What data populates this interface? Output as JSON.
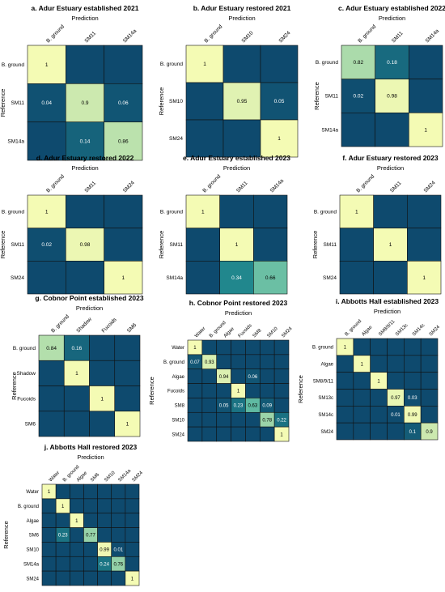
{
  "colors": {
    "low": "#0e4a6e",
    "mid": "#2aa39c",
    "high": "#f4fbb4",
    "grid": "#111111"
  },
  "chart_data": [
    {
      "type": "heatmap",
      "title": "a. Adur Estuary established 2021",
      "xlabel": "Prediction",
      "ylabel": "Reference",
      "x_categories": [
        "B. ground",
        "SM11",
        "SM14a"
      ],
      "y_categories": [
        "B. ground",
        "SM11",
        "SM14a"
      ],
      "values": [
        [
          1,
          0,
          0
        ],
        [
          0.04,
          0.9,
          0.06
        ],
        [
          0,
          0.14,
          0.86
        ]
      ]
    },
    {
      "type": "heatmap",
      "title": "b. Adur Estuary restored 2021",
      "xlabel": "Prediction",
      "ylabel": "Reference",
      "x_categories": [
        "B. ground",
        "SM10",
        "SM24"
      ],
      "y_categories": [
        "B. ground",
        "SM10",
        "SM24"
      ],
      "values": [
        [
          1,
          0,
          0
        ],
        [
          0,
          0.95,
          0.05
        ],
        [
          0,
          0,
          1
        ]
      ]
    },
    {
      "type": "heatmap",
      "title": "c. Adur Estuary established 2022",
      "xlabel": "Prediction",
      "ylabel": "Reference",
      "x_categories": [
        "B. ground",
        "SM11",
        "SM14a"
      ],
      "y_categories": [
        "B. ground",
        "SM11",
        "SM14a"
      ],
      "values": [
        [
          0.82,
          0.18,
          0
        ],
        [
          0.02,
          0.98,
          0
        ],
        [
          0,
          0,
          1
        ]
      ]
    },
    {
      "type": "heatmap",
      "title": "d. Adur Estuary restored 2022",
      "xlabel": "Prediction",
      "ylabel": "Reference",
      "x_categories": [
        "B. ground",
        "SM11",
        "SM24"
      ],
      "y_categories": [
        "B. ground",
        "SM11",
        "SM24"
      ],
      "values": [
        [
          1,
          0,
          0
        ],
        [
          0.02,
          0.98,
          0
        ],
        [
          0,
          0,
          1
        ]
      ]
    },
    {
      "type": "heatmap",
      "title": "e. Adur Estuary established 2023",
      "xlabel": "Prediction",
      "ylabel": "Reference",
      "x_categories": [
        "B. ground",
        "SM11",
        "SM14a"
      ],
      "y_categories": [
        "B. ground",
        "SM11",
        "SM14a"
      ],
      "values": [
        [
          1,
          0,
          0
        ],
        [
          0,
          1,
          0
        ],
        [
          0,
          0.34,
          0.66
        ]
      ]
    },
    {
      "type": "heatmap",
      "title": "f. Adur Estuary restored 2023",
      "xlabel": "Prediction",
      "ylabel": "Reference",
      "x_categories": [
        "B. ground",
        "SM11",
        "SM24"
      ],
      "y_categories": [
        "B. ground",
        "SM11",
        "SM24"
      ],
      "values": [
        [
          1,
          0,
          0
        ],
        [
          0,
          1,
          0
        ],
        [
          0,
          0,
          1
        ]
      ]
    },
    {
      "type": "heatmap",
      "title": "g. Cobnor Point established 2023",
      "xlabel": "Prediction",
      "ylabel": "Reference",
      "x_categories": [
        "B. ground",
        "Shadow",
        "Fucoids",
        "SM6"
      ],
      "y_categories": [
        "B. ground",
        "Shadow",
        "Fucoids",
        "SM6"
      ],
      "values": [
        [
          0.84,
          0.16,
          0,
          0
        ],
        [
          0,
          1,
          0,
          0
        ],
        [
          0,
          0,
          1,
          0
        ],
        [
          0,
          0,
          0,
          1
        ]
      ]
    },
    {
      "type": "heatmap",
      "title": "h. Cobnor Point restored 2023",
      "xlabel": "Prediction",
      "ylabel": "Reference",
      "x_categories": [
        "Water",
        "B. ground",
        "Algae",
        "Fucoids",
        "SM8",
        "SM10",
        "SM24"
      ],
      "y_categories": [
        "Water",
        "B. ground",
        "Algae",
        "Fucoids",
        "SM8",
        "SM10",
        "SM24"
      ],
      "values": [
        [
          1,
          0,
          0,
          0,
          0,
          0,
          0
        ],
        [
          0.07,
          0.93,
          0,
          0,
          0,
          0,
          0
        ],
        [
          0,
          0,
          0.94,
          0,
          0.06,
          0,
          0
        ],
        [
          0,
          0,
          0,
          1,
          0,
          0,
          0
        ],
        [
          0,
          0,
          0.05,
          0.23,
          0.63,
          0.09,
          0
        ],
        [
          0,
          0,
          0,
          0,
          0,
          0.78,
          0.22
        ],
        [
          0,
          0,
          0,
          0,
          0,
          0,
          1
        ]
      ]
    },
    {
      "type": "heatmap",
      "title": "i. Abbotts Hall established 2023",
      "xlabel": "Prediction",
      "ylabel": "Reference",
      "x_categories": [
        "B. ground",
        "Algae",
        "SM8/9/11",
        "SM13c",
        "SM14c",
        "SM24"
      ],
      "y_categories": [
        "B. ground",
        "Algae",
        "SM8/9/11",
        "SM13c",
        "SM14c",
        "SM24"
      ],
      "values": [
        [
          1,
          0,
          0,
          0,
          0,
          0
        ],
        [
          0,
          1,
          0,
          0,
          0,
          0
        ],
        [
          0,
          0,
          1,
          0,
          0,
          0
        ],
        [
          0,
          0,
          0,
          0.97,
          0.03,
          0
        ],
        [
          0,
          0,
          0,
          0.01,
          0.99,
          0
        ],
        [
          0,
          0,
          0,
          0,
          0.1,
          0.9
        ]
      ]
    },
    {
      "type": "heatmap",
      "title": "j. Abbotts Hall restored 2023",
      "xlabel": "Prediction",
      "ylabel": "Reference",
      "x_categories": [
        "Water",
        "B. ground",
        "Algae",
        "SM6",
        "SM10",
        "SM14a",
        "SM24"
      ],
      "y_categories": [
        "Water",
        "B. ground",
        "Algae",
        "SM6",
        "SM10",
        "SM14a",
        "SM24"
      ],
      "values": [
        [
          1,
          0,
          0,
          0,
          0,
          0,
          0
        ],
        [
          0,
          1,
          0,
          0,
          0,
          0,
          0
        ],
        [
          0,
          0,
          1,
          0,
          0,
          0,
          0
        ],
        [
          0,
          0.23,
          0,
          0.77,
          0,
          0,
          0
        ],
        [
          0,
          0,
          0,
          0,
          0.99,
          0.01,
          0
        ],
        [
          0,
          0,
          0,
          0,
          0.24,
          0.76,
          0
        ],
        [
          0,
          0,
          0,
          0,
          0,
          0,
          1
        ]
      ]
    }
  ]
}
